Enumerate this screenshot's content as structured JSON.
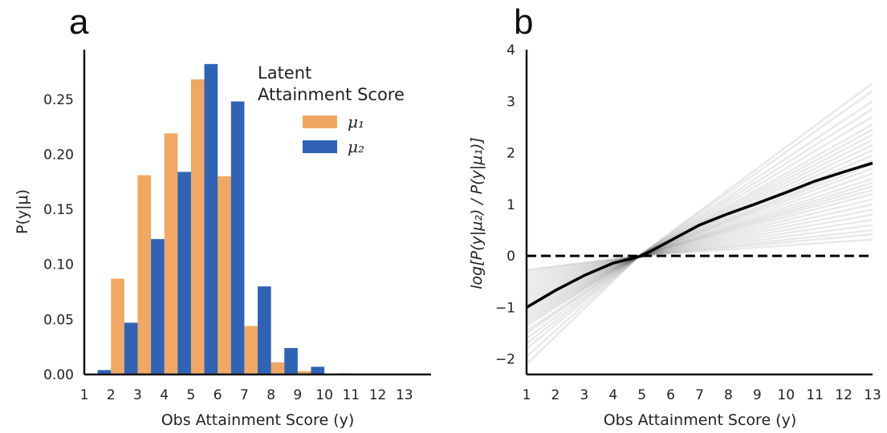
{
  "panels": {
    "a": {
      "letter": "a"
    },
    "b": {
      "letter": "b"
    }
  },
  "chart_data": [
    {
      "type": "bar",
      "panel": "a",
      "title": "",
      "xlabel": "Obs Attainment Score (y)",
      "ylabel": "P(y|μ)",
      "categories": [
        "1",
        "2",
        "3",
        "4",
        "5",
        "6",
        "7",
        "8",
        "9",
        "10",
        "11",
        "12",
        "13"
      ],
      "ylim": [
        0,
        0.295
      ],
      "yticks": [
        "0.00",
        "0.05",
        "0.10",
        "0.15",
        "0.20",
        "0.25"
      ],
      "grid": false,
      "legend": {
        "title_lines": [
          "Latent",
          "Attainment Score"
        ],
        "placement": "top-right"
      },
      "series": [
        {
          "name": "μ₁",
          "color": "#F0A862",
          "values": [
            0.0,
            0.087,
            0.181,
            0.219,
            0.268,
            0.18,
            0.044,
            0.011,
            0.003,
            0.0,
            0.0,
            0.0,
            0.0
          ]
        },
        {
          "name": "μ₂",
          "color": "#2F63B5",
          "values": [
            0.004,
            0.047,
            0.123,
            0.184,
            0.282,
            0.248,
            0.08,
            0.024,
            0.007,
            0.001,
            0.0,
            0.0,
            0.0
          ]
        }
      ]
    },
    {
      "type": "line",
      "panel": "b",
      "title": "",
      "xlabel": "Obs Attainment Score (y)",
      "ylabel": "log[P(y|μ₂) / P(y|μ₁)]",
      "x": [
        1,
        2,
        3,
        4,
        5,
        6,
        7,
        8,
        9,
        10,
        11,
        12,
        13
      ],
      "xticks": [
        "1",
        "2",
        "3",
        "4",
        "5",
        "6",
        "7",
        "8",
        "9",
        "10",
        "11",
        "12",
        "13"
      ],
      "ylim": [
        -2.3,
        4
      ],
      "yticks": [
        "−2",
        "−1",
        "0",
        "1",
        "2",
        "3",
        "4"
      ],
      "grid": false,
      "reference_line": {
        "y": 0,
        "style": "dashed",
        "color": "#000000"
      },
      "series": [
        {
          "role": "mean",
          "color": "#000000",
          "values": [
            -1.0,
            -0.67,
            -0.38,
            -0.14,
            0.0,
            0.3,
            0.6,
            0.82,
            1.02,
            1.23,
            1.45,
            1.63,
            1.8
          ]
        }
      ],
      "samples": {
        "color": "#000000",
        "at_x1": [
          -2.1,
          -1.95,
          -1.8,
          -1.7,
          -1.6,
          -1.5,
          -1.45,
          -1.35,
          -1.3,
          -1.25,
          -1.2,
          -1.15,
          -1.1,
          -1.05,
          -1.0,
          -0.95,
          -0.9,
          -0.85,
          -0.8,
          -0.75,
          -0.7,
          -0.65,
          -0.6,
          -0.55,
          -0.5,
          -0.45,
          -0.4,
          -0.35,
          -0.3,
          -0.27
        ],
        "at_x13": [
          3.35,
          3.2,
          3.0,
          2.85,
          2.7,
          2.55,
          2.45,
          2.35,
          2.25,
          2.15,
          2.05,
          1.95,
          1.85,
          1.78,
          1.7,
          1.6,
          1.5,
          1.42,
          1.35,
          1.28,
          1.2,
          1.1,
          1.0,
          0.9,
          0.8,
          0.7,
          0.6,
          0.5,
          0.42,
          0.32
        ]
      }
    }
  ]
}
